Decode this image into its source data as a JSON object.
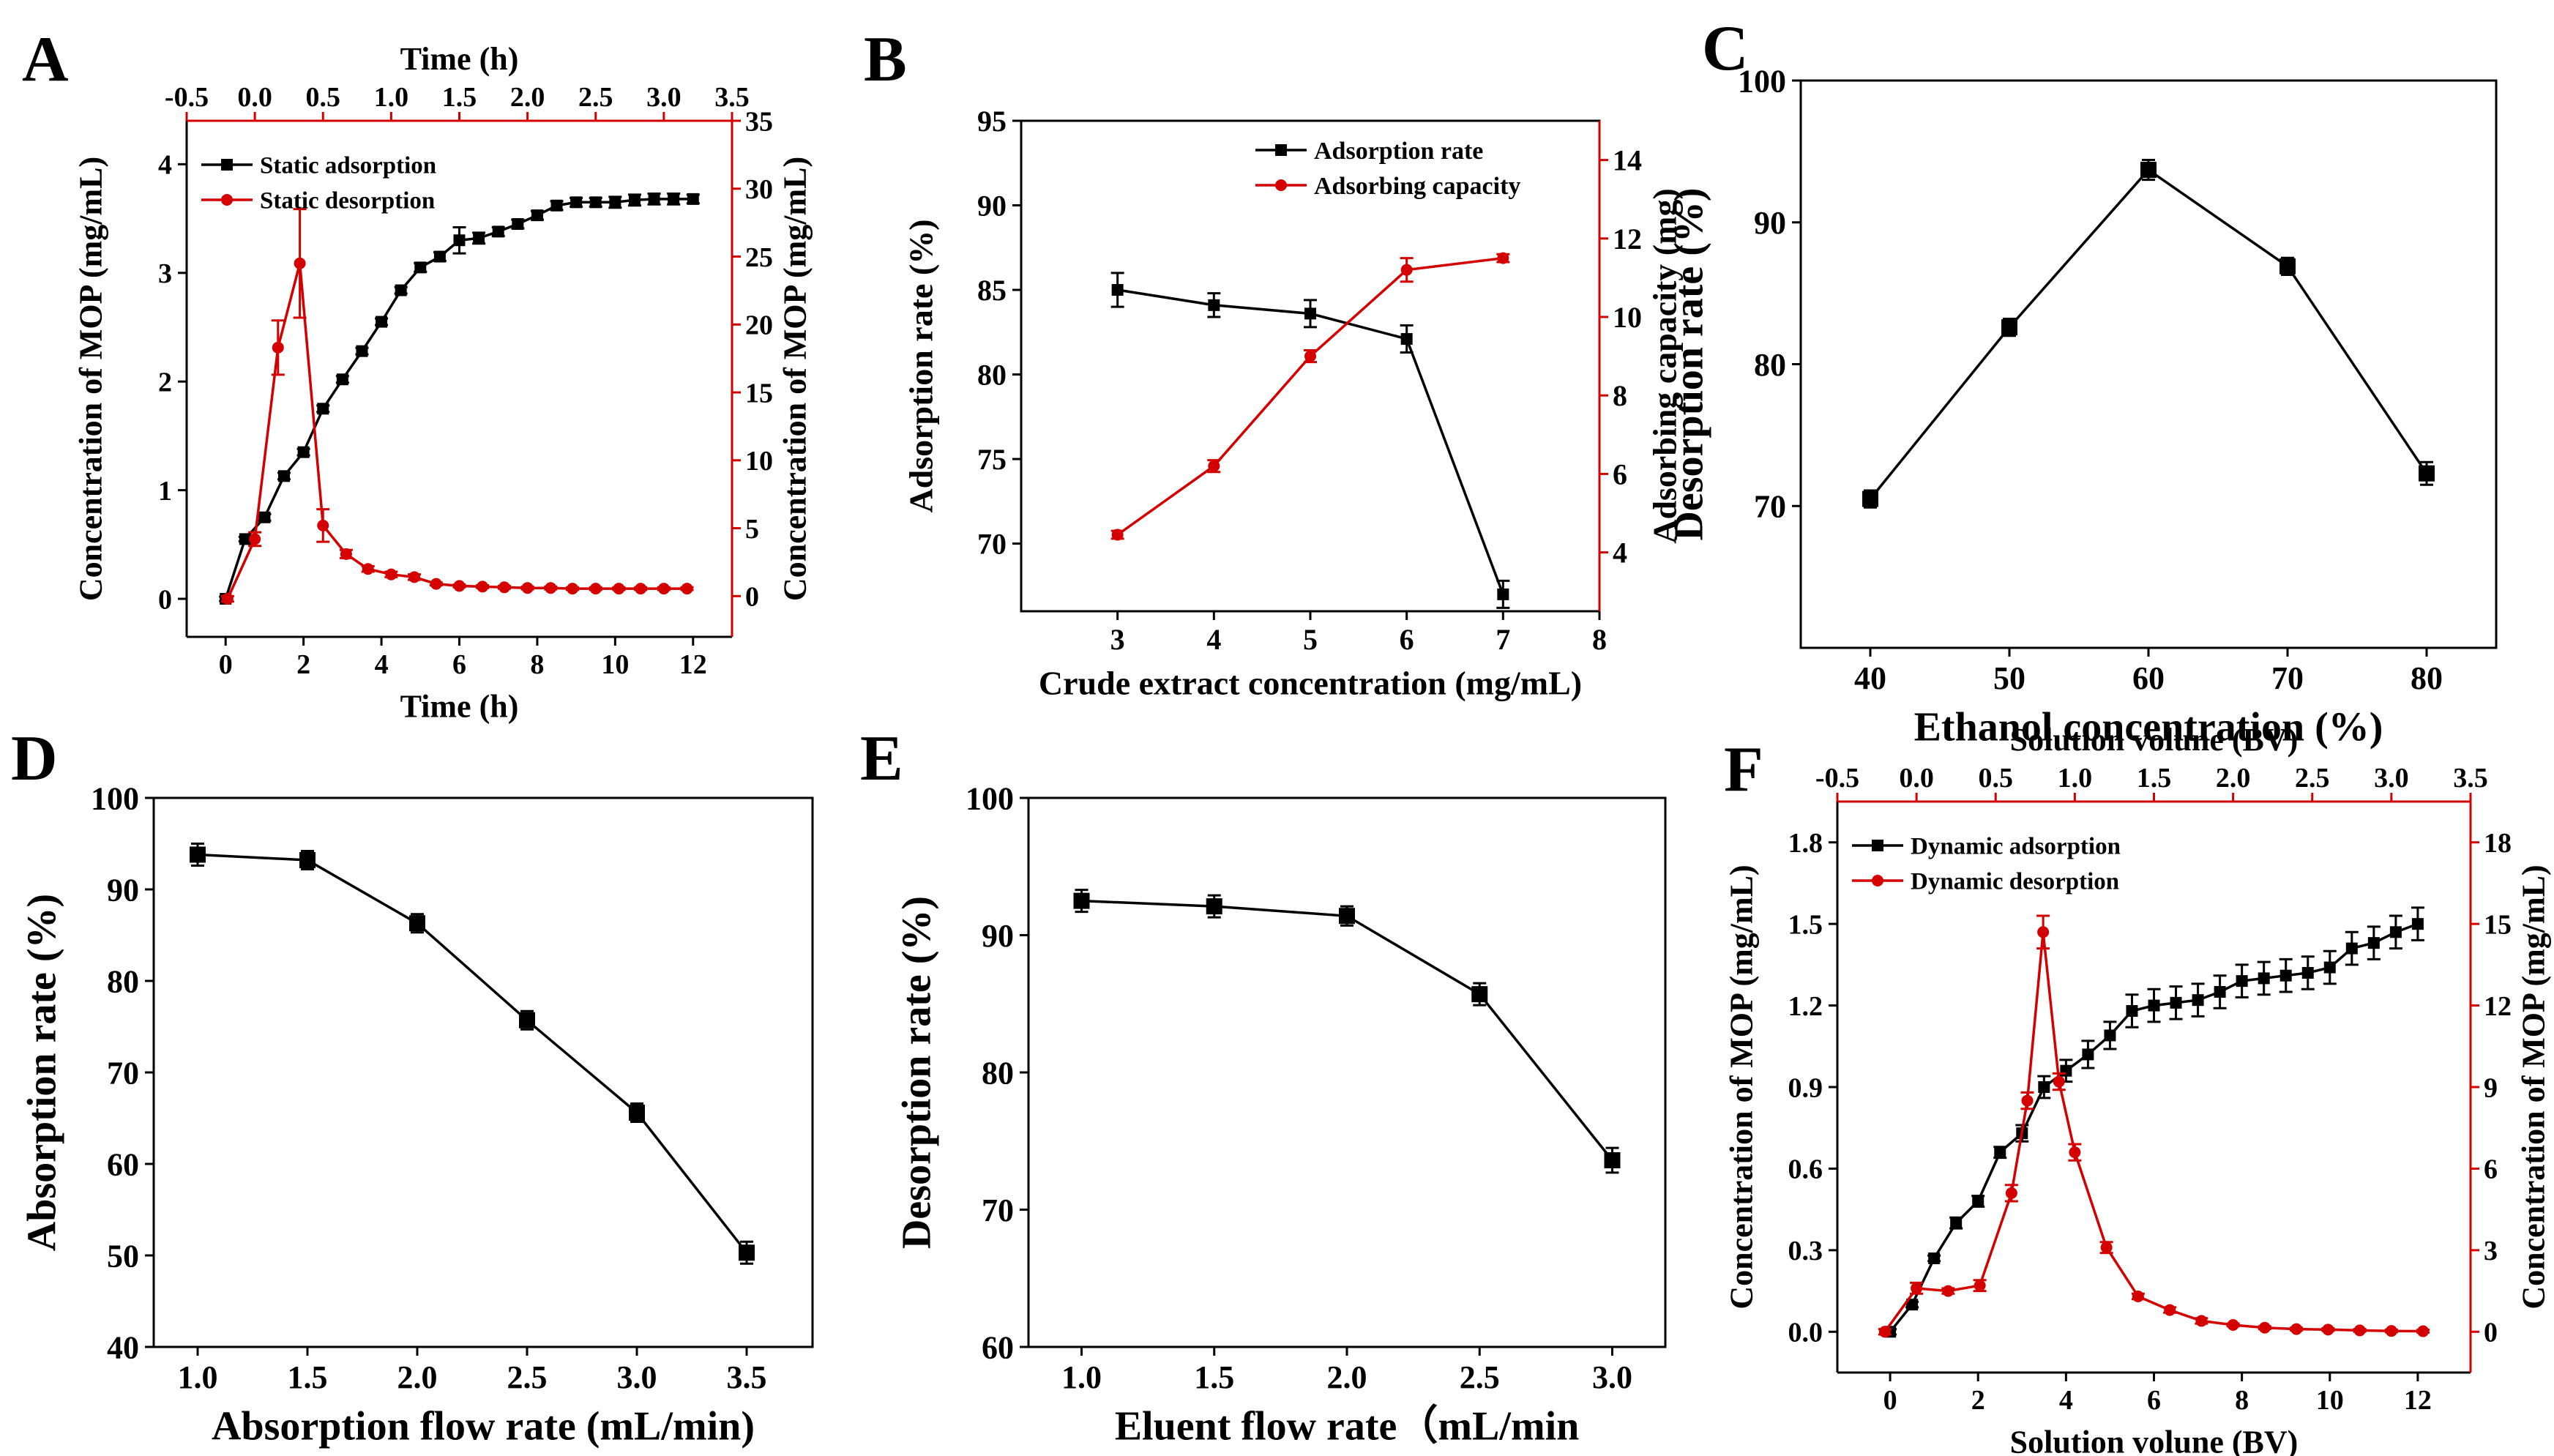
{
  "colors": {
    "black_series": "#000000",
    "red_series": "#d40000"
  },
  "chart_data": [
    {
      "panel": "A",
      "type": "line",
      "xlabel": "Time (h)",
      "ylabel": "Concentration of MOP (mg/mL)",
      "y2label": "Concentration of MOP (mg/mL)",
      "x2label": "Time (h)",
      "xlim": [
        -1,
        13
      ],
      "ylim": [
        -0.35,
        4.4
      ],
      "y2lim": [
        -3,
        35
      ],
      "x2lim": [
        -0.5,
        3.5
      ],
      "xticks": [
        0,
        2,
        4,
        6,
        8,
        10,
        12
      ],
      "yticks": [
        0,
        1,
        2,
        3,
        4
      ],
      "y2ticks": [
        0,
        5,
        10,
        15,
        20,
        25,
        30,
        35
      ],
      "x2ticks": [
        -0.5,
        0.0,
        0.5,
        1.0,
        1.5,
        2.0,
        2.5,
        3.0,
        3.5
      ],
      "legend": "top-left",
      "series": [
        {
          "name": "Static adsorption",
          "color": "#000000",
          "marker": "square",
          "axis": "bottom-left",
          "x": [
            0,
            0.5,
            1,
            1.5,
            2,
            2.5,
            3,
            3.5,
            4,
            4.5,
            5,
            5.5,
            6,
            6.5,
            7,
            7.5,
            8,
            8.5,
            9,
            9.5,
            10,
            10.5,
            11,
            11.5,
            12
          ],
          "y": [
            0,
            0.55,
            0.75,
            1.13,
            1.35,
            1.75,
            2.02,
            2.28,
            2.55,
            2.84,
            3.05,
            3.15,
            3.3,
            3.32,
            3.38,
            3.45,
            3.53,
            3.62,
            3.65,
            3.65,
            3.65,
            3.67,
            3.68,
            3.68,
            3.68
          ],
          "err": [
            0.02,
            0.02,
            0.03,
            0.03,
            0.03,
            0.03,
            0.03,
            0.03,
            0.03,
            0.03,
            0.04,
            0.04,
            0.12,
            0.05,
            0.04,
            0.04,
            0.04,
            0.04,
            0.04,
            0.04,
            0.05,
            0.05,
            0.05,
            0.05,
            0.04
          ]
        },
        {
          "name": "Static desorption",
          "color": "#d40000",
          "marker": "circle",
          "axis": "top-right",
          "x": [
            -0.2,
            0.0,
            0.17,
            0.33,
            0.5,
            0.67,
            0.83,
            1.0,
            1.17,
            1.33,
            1.5,
            1.67,
            1.83,
            2.0,
            2.17,
            2.33,
            2.5,
            2.67,
            2.83,
            3.0,
            3.17
          ],
          "y": [
            -0.2,
            4.2,
            18.3,
            24.5,
            5.2,
            3.1,
            2.0,
            1.6,
            1.4,
            0.9,
            0.75,
            0.7,
            0.65,
            0.6,
            0.6,
            0.55,
            0.55,
            0.55,
            0.55,
            0.55,
            0.55
          ],
          "err": [
            0.2,
            0.5,
            2.0,
            4.0,
            1.2,
            0.3,
            0.2,
            0.2,
            0.2,
            0.1,
            0.1,
            0.1,
            0.1,
            0.1,
            0.1,
            0.1,
            0.1,
            0.1,
            0.1,
            0.1,
            0.1
          ]
        }
      ]
    },
    {
      "panel": "B",
      "type": "line",
      "xlabel": "Crude extract concentration (mg/mL)",
      "ylabel": "Adsorption rate (%)",
      "y2label": "Adsorbing capacity (mg)",
      "xlim": [
        2,
        8
      ],
      "ylim": [
        66,
        95
      ],
      "y2lim": [
        2.5,
        15
      ],
      "xticks": [
        3,
        4,
        5,
        6,
        7,
        8
      ],
      "yticks": [
        70,
        75,
        80,
        85,
        90,
        95
      ],
      "y2ticks": [
        4,
        6,
        8,
        10,
        12,
        14
      ],
      "legend": "top-right",
      "series": [
        {
          "name": "Adsorption rate",
          "color": "#000000",
          "marker": "square",
          "axis": "left",
          "x": [
            3,
            4,
            5,
            6,
            7
          ],
          "y": [
            85.0,
            84.1,
            83.6,
            82.1,
            67.0
          ],
          "err": [
            1.0,
            0.7,
            0.8,
            0.8,
            0.8
          ]
        },
        {
          "name": "Adsorbing capacity",
          "color": "#d40000",
          "marker": "circle",
          "axis": "right",
          "x": [
            3,
            4,
            5,
            6,
            7
          ],
          "y": [
            4.45,
            6.2,
            9.0,
            11.2,
            11.5
          ],
          "err": [
            0.1,
            0.15,
            0.15,
            0.3,
            0.1
          ]
        }
      ]
    },
    {
      "panel": "C",
      "type": "line",
      "xlabel": "Ethanol concentration (%)",
      "ylabel": "Desorption rate (%)",
      "xlim": [
        35,
        85
      ],
      "ylim": [
        60,
        100
      ],
      "xticks": [
        40,
        50,
        60,
        70,
        80
      ],
      "yticks": [
        70,
        80,
        90,
        100
      ],
      "series": [
        {
          "color": "#000000",
          "marker": "square",
          "x": [
            40,
            50,
            60,
            70,
            80
          ],
          "y": [
            70.5,
            82.6,
            93.7,
            86.9,
            72.3
          ],
          "err": [
            0.6,
            0.6,
            0.7,
            0.6,
            0.8
          ]
        }
      ]
    },
    {
      "panel": "D",
      "type": "line",
      "xlabel": "Absorption flow rate (mL/min)",
      "ylabel": "Absorption rate (%)",
      "xlim": [
        0.8,
        3.8
      ],
      "ylim": [
        40,
        100
      ],
      "xticks": [
        1.0,
        1.5,
        2.0,
        2.5,
        3.0,
        3.5
      ],
      "yticks": [
        40,
        50,
        60,
        70,
        80,
        90,
        100
      ],
      "series": [
        {
          "color": "#000000",
          "marker": "square",
          "x": [
            1.0,
            1.5,
            2.0,
            2.5,
            3.0,
            3.5
          ],
          "y": [
            93.8,
            93.2,
            86.3,
            75.7,
            65.6,
            50.3
          ],
          "err": [
            1.2,
            1.0,
            1.0,
            1.0,
            1.0,
            1.2
          ]
        }
      ]
    },
    {
      "panel": "E",
      "type": "line",
      "xlabel": "Eluent flow rate（mL/min",
      "ylabel": "Desorption rate (%)",
      "xlim": [
        0.8,
        3.2
      ],
      "ylim": [
        60,
        100
      ],
      "xticks": [
        1.0,
        1.5,
        2.0,
        2.5,
        3.0
      ],
      "yticks": [
        60,
        70,
        80,
        90,
        100
      ],
      "series": [
        {
          "color": "#000000",
          "marker": "square",
          "x": [
            1.0,
            1.5,
            2.0,
            2.5,
            3.0
          ],
          "y": [
            92.5,
            92.1,
            91.4,
            85.7,
            73.6
          ],
          "err": [
            0.8,
            0.8,
            0.7,
            0.8,
            0.9
          ]
        }
      ]
    },
    {
      "panel": "F",
      "type": "line",
      "xlabel": "Solution volune (BV)",
      "ylabel": "Concentration of MOP (mg/mL)",
      "y2label": "Concentration of MOP (mg/mL)",
      "x2label": "Solution volune (BV)",
      "xlim": [
        -1.2,
        13.2
      ],
      "ylim": [
        -0.15,
        1.95
      ],
      "y2lim": [
        -1.5,
        19.5
      ],
      "x2lim": [
        -0.5,
        3.5
      ],
      "xticks": [
        0,
        2,
        4,
        6,
        8,
        10,
        12
      ],
      "yticks": [
        0.0,
        0.3,
        0.6,
        0.9,
        1.2,
        1.5,
        1.8
      ],
      "y2ticks": [
        0,
        3,
        6,
        9,
        12,
        15,
        18
      ],
      "x2ticks": [
        -0.5,
        0.0,
        0.5,
        1.0,
        1.5,
        2.0,
        2.5,
        3.0,
        3.5
      ],
      "legend": "top-left",
      "series": [
        {
          "name": "Dynamic adsorption",
          "color": "#000000",
          "marker": "square",
          "axis": "bottom-left",
          "x": [
            0,
            0.5,
            1,
            1.5,
            2,
            2.5,
            3,
            3.5,
            4,
            4.5,
            5,
            5.5,
            6,
            6.5,
            7,
            7.5,
            8,
            8.5,
            9,
            9.5,
            10,
            10.5,
            11,
            11.5,
            12
          ],
          "y": [
            0,
            0.1,
            0.27,
            0.4,
            0.48,
            0.66,
            0.73,
            0.9,
            0.96,
            1.02,
            1.09,
            1.18,
            1.2,
            1.21,
            1.22,
            1.25,
            1.29,
            1.3,
            1.31,
            1.32,
            1.34,
            1.41,
            1.43,
            1.47,
            1.5
          ],
          "err": [
            0.01,
            0.01,
            0.01,
            0.02,
            0.02,
            0.02,
            0.03,
            0.04,
            0.04,
            0.05,
            0.05,
            0.06,
            0.06,
            0.06,
            0.06,
            0.06,
            0.06,
            0.06,
            0.06,
            0.06,
            0.06,
            0.06,
            0.06,
            0.06,
            0.06
          ]
        },
        {
          "name": "Dynamic desorption",
          "color": "#d40000",
          "marker": "circle",
          "axis": "top-right",
          "x": [
            -0.2,
            0.0,
            0.2,
            0.4,
            0.6,
            0.7,
            0.8,
            0.9,
            1.0,
            1.2,
            1.4,
            1.6,
            1.8,
            2.0,
            2.2,
            2.4,
            2.6,
            2.8,
            3.0,
            3.2
          ],
          "y": [
            0,
            1.6,
            1.5,
            1.7,
            5.1,
            8.5,
            14.7,
            9.2,
            6.6,
            3.1,
            1.3,
            0.8,
            0.4,
            0.25,
            0.15,
            0.1,
            0.08,
            0.05,
            0.03,
            0.02
          ],
          "err": [
            0.1,
            0.2,
            0.1,
            0.2,
            0.3,
            0.3,
            0.6,
            0.3,
            0.3,
            0.2,
            0.1,
            0.1,
            0.1,
            0.05,
            0.05,
            0.05,
            0.05,
            0.05,
            0.05,
            0.05
          ]
        }
      ]
    }
  ]
}
